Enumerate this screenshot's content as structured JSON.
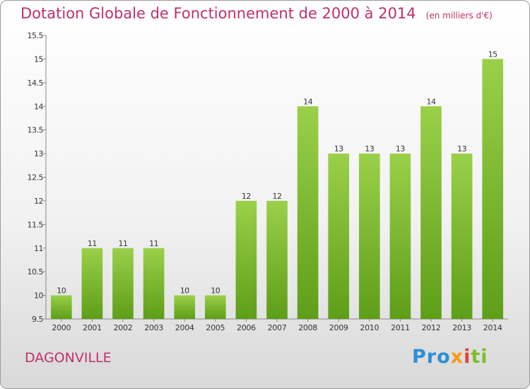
{
  "title": "Dotation Globale de Fonctionnement de 2000 à 2014",
  "subtitle": "(en milliers d'€)",
  "commune": "DAGONVILLE",
  "logo": {
    "p1": "Pro",
    "p2": "x",
    "p3": "i",
    "p4": "ti"
  },
  "colors": {
    "title": "#c0306a",
    "bar_top": "#9ad04a",
    "bar_bottom": "#5e9e18"
  },
  "chart_data": {
    "type": "bar",
    "title": "Dotation Globale de Fonctionnement de 2000 à 2014",
    "subtitle": "(en milliers d'€)",
    "xlabel": "",
    "ylabel": "",
    "categories": [
      "2000",
      "2001",
      "2002",
      "2003",
      "2004",
      "2005",
      "2006",
      "2007",
      "2008",
      "2009",
      "2010",
      "2011",
      "2012",
      "2013",
      "2014"
    ],
    "values": [
      10,
      11,
      11,
      11,
      10,
      10,
      12,
      12,
      14,
      13,
      13,
      13,
      14,
      13,
      15
    ],
    "ylim": [
      9.5,
      15.5
    ],
    "yticks": [
      9.5,
      10,
      10.5,
      11,
      11.5,
      12,
      12.5,
      13,
      13.5,
      14,
      14.5,
      15,
      15.5
    ],
    "ytick_labels": [
      "9.5",
      "10",
      "10.5",
      "11",
      "11.5",
      "12",
      "12.5",
      "13",
      "13.5",
      "14",
      "14.5",
      "15",
      "15.5"
    ],
    "grid": false,
    "data_labels": true
  }
}
